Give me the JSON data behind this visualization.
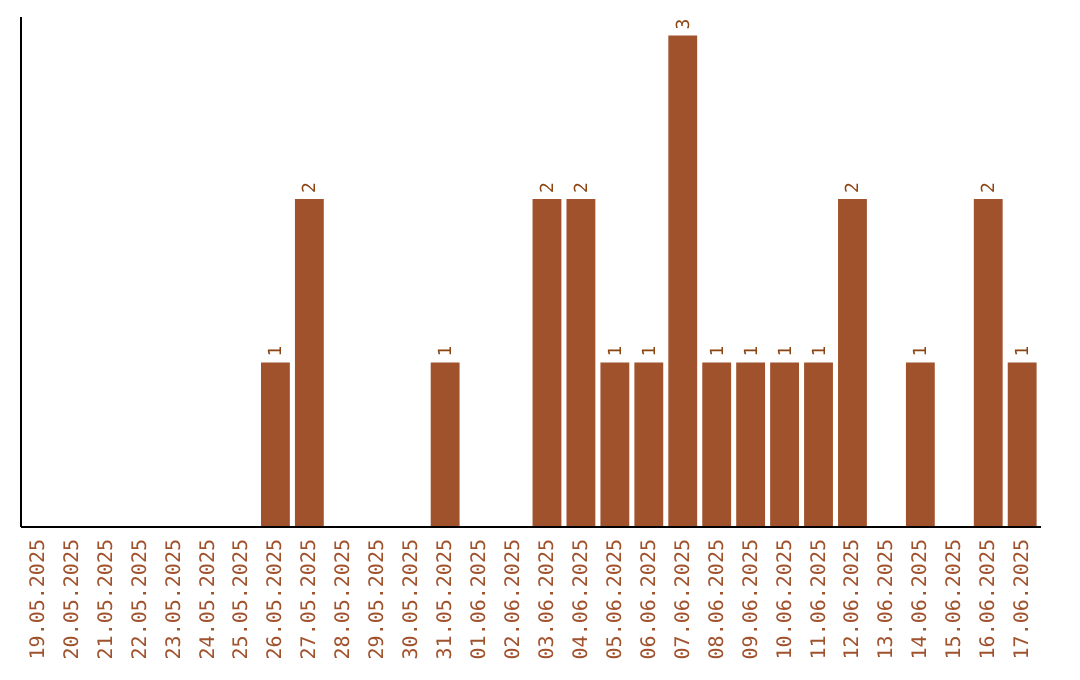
{
  "chart_data": {
    "type": "bar",
    "categories": [
      "19.05.2025",
      "20.05.2025",
      "21.05.2025",
      "22.05.2025",
      "23.05.2025",
      "24.05.2025",
      "25.05.2025",
      "26.05.2025",
      "27.05.2025",
      "28.05.2025",
      "29.05.2025",
      "30.05.2025",
      "31.05.2025",
      "01.06.2025",
      "02.06.2025",
      "03.06.2025",
      "04.06.2025",
      "05.06.2025",
      "06.06.2025",
      "07.06.2025",
      "08.06.2025",
      "09.06.2025",
      "10.06.2025",
      "11.06.2025",
      "12.06.2025",
      "13.06.2025",
      "14.06.2025",
      "15.06.2025",
      "16.06.2025",
      "17.06.2025"
    ],
    "values": [
      0,
      0,
      0,
      0,
      0,
      0,
      0,
      1,
      2,
      0,
      0,
      0,
      1,
      0,
      0,
      2,
      2,
      1,
      1,
      3,
      1,
      1,
      1,
      1,
      2,
      0,
      1,
      0,
      2,
      1
    ],
    "value_labels": [
      null,
      null,
      null,
      null,
      null,
      null,
      null,
      "1",
      "2",
      null,
      null,
      null,
      "1",
      null,
      null,
      "2",
      "2",
      "1",
      "1",
      "3",
      "1",
      "1",
      "1",
      "1",
      "2",
      null,
      "1",
      null,
      "2",
      "1"
    ],
    "color": "#a0522d",
    "tick_labels": "x",
    "grid": false
  }
}
